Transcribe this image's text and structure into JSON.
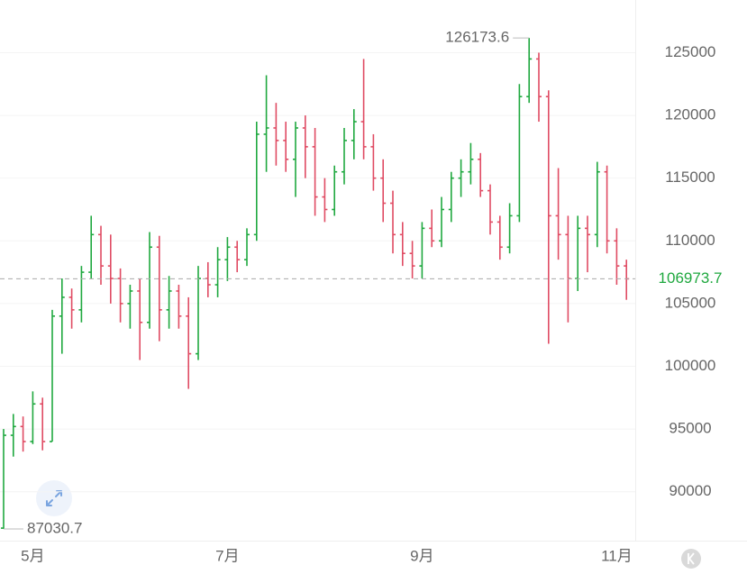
{
  "chart_data": {
    "type": "candlestick",
    "categories": [
      null,
      null,
      null,
      "5月",
      null,
      null,
      null,
      null,
      null,
      null,
      null,
      null,
      null,
      null,
      null,
      null,
      null,
      null,
      null,
      null,
      null,
      null,
      null,
      "7月",
      null,
      null,
      null,
      null,
      null,
      null,
      null,
      null,
      null,
      null,
      null,
      null,
      null,
      null,
      null,
      null,
      null,
      null,
      null,
      "9月",
      null,
      null,
      null,
      null,
      null,
      null,
      null,
      null,
      null,
      null,
      null,
      null,
      null,
      null,
      null,
      null,
      null,
      null,
      null,
      "11月",
      null
    ],
    "open": [
      87100,
      94500,
      95200,
      94000,
      97000,
      94000,
      104000,
      105500,
      104500,
      107500,
      110500,
      108000,
      107000,
      105000,
      106000,
      103500,
      109500,
      104500,
      106000,
      104000,
      101000,
      107000,
      106500,
      108500,
      109500,
      108500,
      110500,
      118500,
      119000,
      118000,
      116500,
      119000,
      117500,
      113500,
      112500,
      115500,
      118000,
      119500,
      117500,
      115000,
      113000,
      110500,
      109000,
      108000,
      111000,
      110000,
      112500,
      115000,
      115500,
      116500,
      114000,
      111500,
      109500,
      112000,
      121500,
      124500,
      121500,
      112000,
      110500,
      107000,
      111000,
      110500,
      115500,
      110000,
      108000
    ],
    "high": [
      95000,
      96200,
      96000,
      98000,
      97500,
      104500,
      107000,
      106200,
      108000,
      112000,
      111200,
      110500,
      107800,
      106500,
      107000,
      110700,
      110400,
      107200,
      106500,
      105500,
      108000,
      108300,
      109500,
      110300,
      110000,
      111000,
      119500,
      123200,
      121000,
      119500,
      119500,
      120000,
      119000,
      115000,
      116000,
      119000,
      120500,
      124500,
      118500,
      116500,
      114000,
      111500,
      110000,
      111500,
      112500,
      113500,
      115500,
      116500,
      117800,
      117000,
      114500,
      112000,
      113000,
      122500,
      126173.6,
      125000,
      122000,
      115800,
      112000,
      112000,
      112000,
      116300,
      116000,
      111000,
      108500
    ],
    "low": [
      87030.7,
      92800,
      93200,
      93800,
      93300,
      94000,
      101000,
      103000,
      103500,
      107000,
      106500,
      105000,
      103500,
      103000,
      100500,
      103000,
      102000,
      103000,
      103000,
      98200,
      100500,
      105500,
      105500,
      106800,
      107500,
      108000,
      110000,
      115500,
      116000,
      115500,
      113500,
      115000,
      112000,
      111500,
      112000,
      114500,
      116500,
      116500,
      114000,
      111500,
      109000,
      108000,
      107000,
      107000,
      109500,
      109500,
      111500,
      113500,
      114500,
      113500,
      110500,
      108500,
      109000,
      111500,
      121000,
      119500,
      101800,
      108500,
      103500,
      106000,
      107500,
      109500,
      109000,
      106500,
      105300
    ],
    "close": [
      94500,
      95200,
      94000,
      97000,
      94000,
      104000,
      105500,
      104500,
      107500,
      110500,
      108000,
      107000,
      105000,
      106000,
      103500,
      109500,
      104500,
      106000,
      104000,
      101000,
      107000,
      106500,
      108500,
      109500,
      108500,
      110500,
      118500,
      119000,
      118000,
      116500,
      119000,
      117500,
      113500,
      112500,
      115500,
      118000,
      119500,
      117500,
      115000,
      113000,
      110500,
      109000,
      108000,
      111000,
      110000,
      112500,
      115000,
      115500,
      116500,
      114000,
      111500,
      109500,
      112000,
      121500,
      124500,
      121500,
      112000,
      110500,
      107000,
      111000,
      110500,
      115500,
      110000,
      108000,
      106973.7
    ],
    "up_color": "#1fa83f",
    "down_color": "#e04b63",
    "ylim": [
      86100,
      129200
    ],
    "yticks": [
      90000,
      95000,
      100000,
      105000,
      110000,
      115000,
      120000,
      125000
    ],
    "grid": true
  }
}
